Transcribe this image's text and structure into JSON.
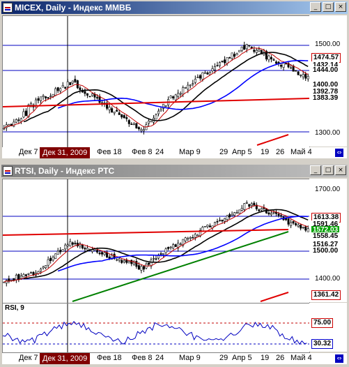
{
  "window1": {
    "title": "MICEX, Daily - Индекс ММВБ",
    "btn_min": "_",
    "btn_max": "□",
    "btn_close": "×",
    "price_labels": [
      "1500.00",
      "1474.57",
      "1432.14",
      "1444.00",
      "1400.00",
      "1392.78",
      "1383.39",
      "1300.00"
    ],
    "date_flag": "Дек 31, 2009",
    "x_labels": [
      "Дек 7",
      "Фев 18",
      "Фев 8",
      "24",
      "Мар 9",
      "29",
      "Апр 5",
      "19",
      "26",
      "Май 4"
    ]
  },
  "window2": {
    "title": "RTSI, Daily - Индекс РТС",
    "btn_min": "_",
    "btn_max": "□",
    "btn_close": "×",
    "price_labels": [
      "1700.00",
      "1613.38",
      "1591.46",
      "1572.03",
      "1558.45",
      "1516.27",
      "1500.00",
      "1400.00",
      "1361.42"
    ],
    "date_flag": "Дек 31, 2009",
    "x_labels": [
      "Дек 7",
      "Фев 18",
      "Фев 8",
      "24",
      "Мар 9",
      "29",
      "Апр 5",
      "19",
      "26",
      "Май 4"
    ],
    "rsi_label": "RSI, 9",
    "rsi_levels": [
      "75.00",
      "30.32"
    ]
  },
  "colors": {
    "blue_line": "#0000ff",
    "red_line": "#e00000",
    "green_line": "#008000",
    "black_line": "#000000",
    "price_red": "#cc0000",
    "price_blue": "#0000cc"
  },
  "icons": {
    "corner": "chart-scroll-icon"
  }
}
